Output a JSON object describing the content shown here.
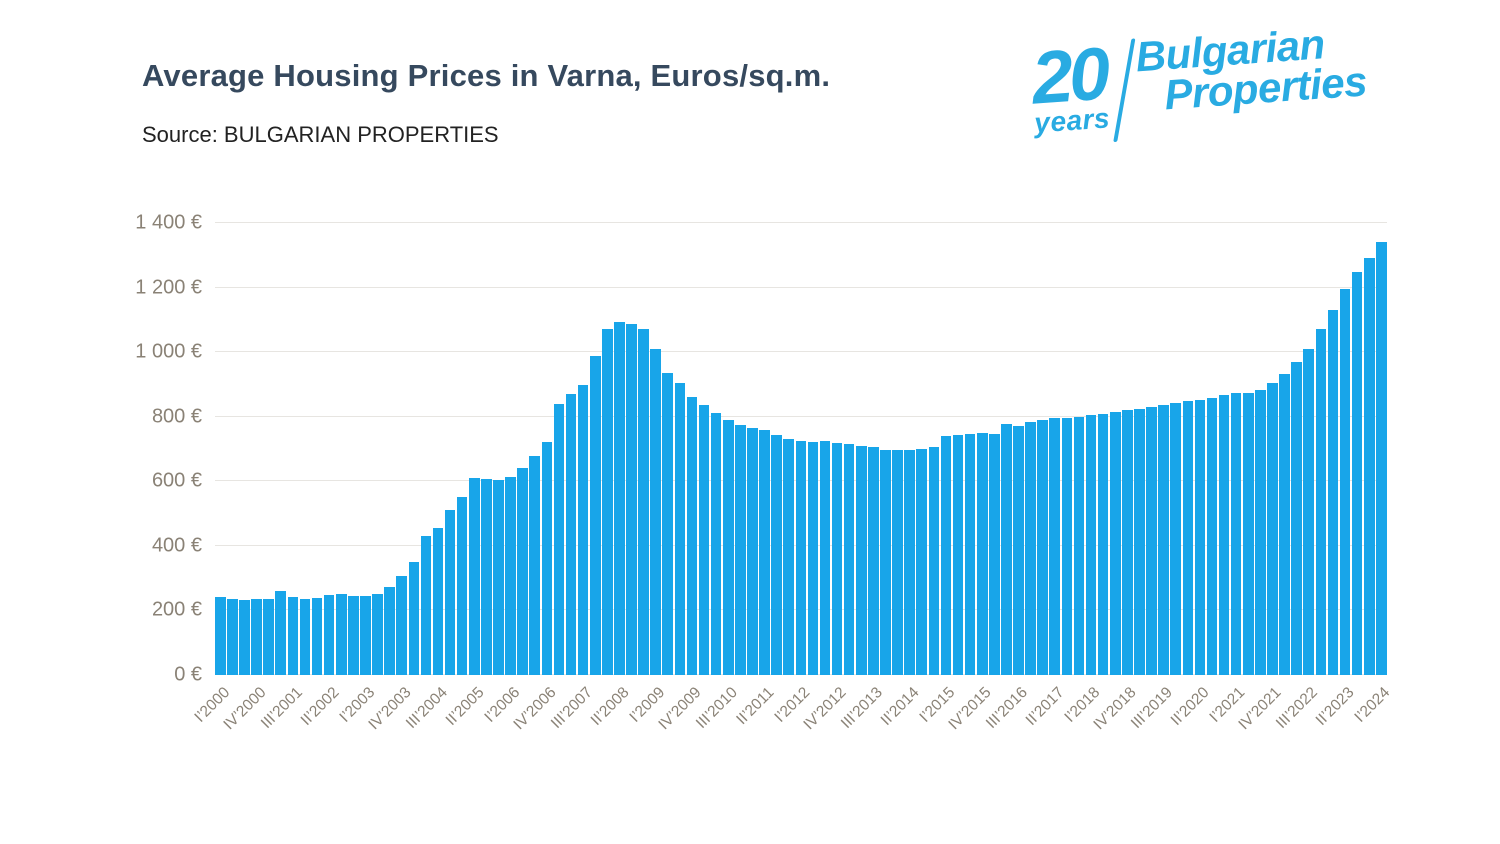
{
  "header": {
    "title": "Average Housing Prices in Varna, Euros/sq.m.",
    "source": "Source: BULGARIAN PROPERTIES"
  },
  "logo": {
    "years_number": "20",
    "years_word": "years",
    "brand_line1": "Bulgarian",
    "brand_line2": "Properties",
    "color": "#29abe2"
  },
  "chart_data": {
    "type": "bar",
    "title": "Average Housing Prices in Varna, Euros/sq.m.",
    "source": "BULGARIAN PROPERTIES",
    "unit": "EUR per sq.m.",
    "bar_color": "#18a5e9",
    "grid": true,
    "ylim": [
      0,
      1400
    ],
    "y_ticks": [
      {
        "value": 0,
        "label": "0 €"
      },
      {
        "value": 200,
        "label": "200 €"
      },
      {
        "value": 400,
        "label": "400 €"
      },
      {
        "value": 600,
        "label": "600 €"
      },
      {
        "value": 800,
        "label": "800 €"
      },
      {
        "value": 1000,
        "label": "1 000 €"
      },
      {
        "value": 1200,
        "label": "1 200 €"
      },
      {
        "value": 1400,
        "label": "1 400 €"
      }
    ],
    "x_tick_every": 3,
    "x_tick_labels": [
      "I’2000",
      "IV’2000",
      "III’2001",
      "II’2002",
      "I’2003",
      "IV’2003",
      "III’2004",
      "II’2005",
      "I’2006",
      "IV’2006",
      "III’2007",
      "II’2008",
      "I’2009",
      "IV’2009",
      "III’2010",
      "II’2011",
      "I’2012",
      "IV’2012",
      "III’2013",
      "II’2014",
      "I’2015",
      "IV’2015",
      "III’2016",
      "II’2017",
      "I’2018",
      "IV’2018",
      "III’2019",
      "II’2020",
      "I’2021",
      "IV’2021",
      "III’2022",
      "II’2023",
      "I’2024"
    ],
    "values": [
      242,
      234,
      232,
      234,
      236,
      260,
      243,
      236,
      240,
      248,
      252,
      245,
      246,
      250,
      273,
      306,
      351,
      430,
      454,
      511,
      552,
      611,
      606,
      603,
      614,
      640,
      679,
      722,
      838,
      870,
      898,
      988,
      1073,
      1094,
      1086,
      1073,
      1011,
      934,
      903,
      861,
      836,
      812,
      789,
      774,
      766,
      760,
      743,
      730,
      725,
      722,
      724,
      720,
      717,
      709,
      705,
      698,
      696,
      698,
      701,
      706,
      740,
      743,
      746,
      750,
      748,
      779,
      771,
      784,
      789,
      795,
      795,
      798,
      805,
      810,
      815,
      820,
      825,
      829,
      836,
      843,
      849,
      853,
      859,
      867,
      872,
      874,
      882,
      903,
      932,
      968,
      1011,
      1073,
      1132,
      1197,
      1248,
      1293,
      1341
    ]
  }
}
